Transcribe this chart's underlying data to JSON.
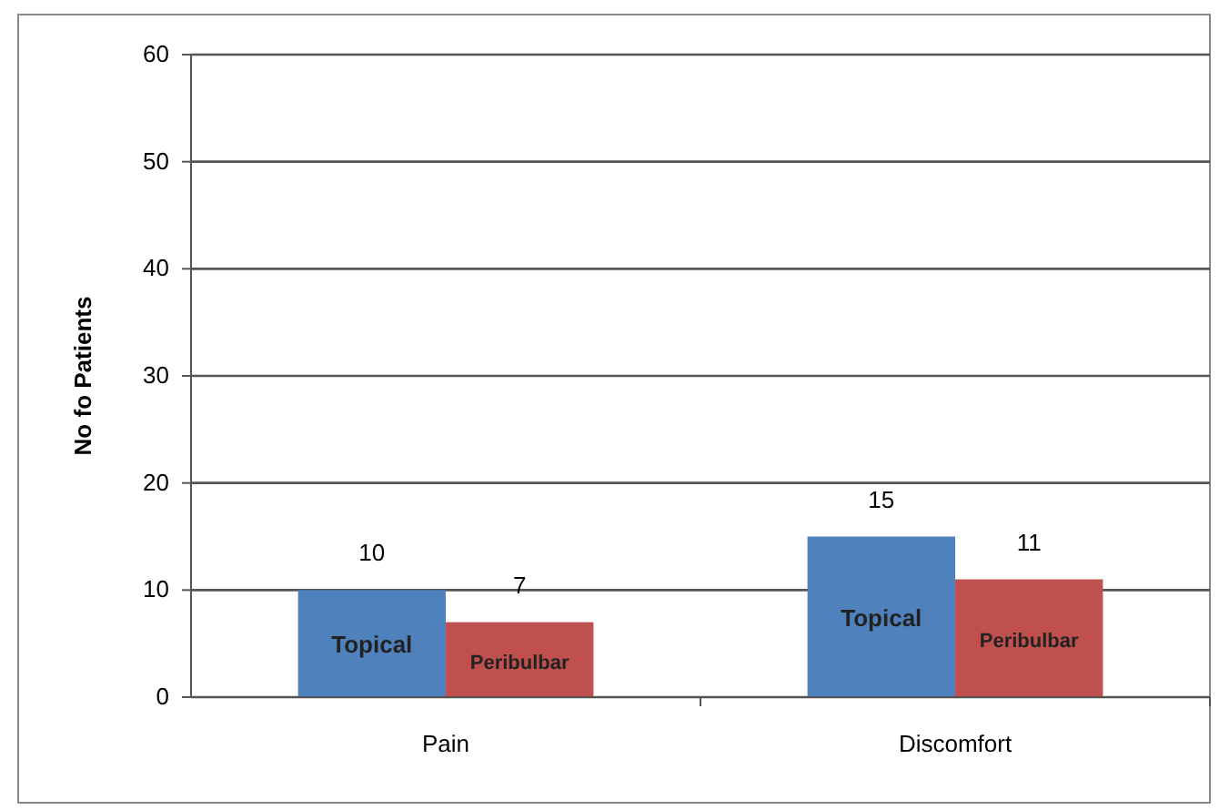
{
  "chart_data": {
    "type": "bar",
    "ylabel": "No fo Patients",
    "categories": [
      "Pain",
      "Discomfort"
    ],
    "series": [
      {
        "name": "Topical",
        "color": "#4f81bd",
        "values": [
          10,
          15
        ]
      },
      {
        "name": "Peribulbar",
        "color": "#c0504d",
        "values": [
          7,
          11
        ]
      }
    ],
    "ylim": [
      0,
      60
    ],
    "yticks": [
      0,
      10,
      20,
      30,
      40,
      50,
      60
    ],
    "grid": "y",
    "data_labels": true
  }
}
